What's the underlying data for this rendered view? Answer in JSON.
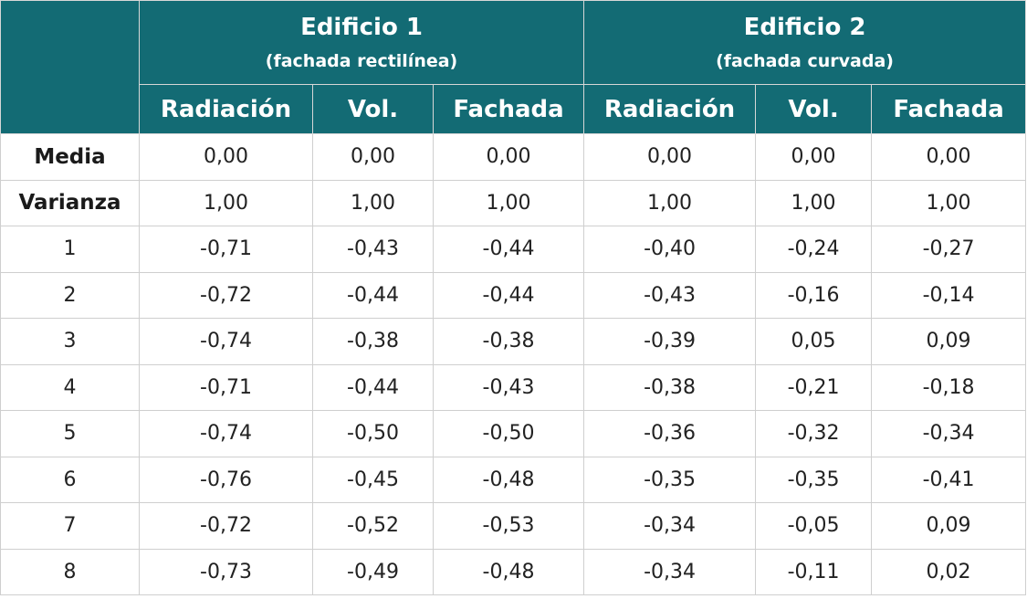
{
  "table": {
    "groups": [
      {
        "title": "Edificio 1",
        "subtitle": "(fachada rectilínea)"
      },
      {
        "title": "Edificio 2",
        "subtitle": "(fachada curvada)"
      }
    ],
    "subheaders": [
      "Radiación",
      "Vol.",
      "Fachada",
      "Radiación",
      "Vol.",
      "Fachada"
    ],
    "rows": [
      {
        "label": "Media",
        "values": [
          "0,00",
          "0,00",
          "0,00",
          "0,00",
          "0,00",
          "0,00"
        ]
      },
      {
        "label": "Varianza",
        "values": [
          "1,00",
          "1,00",
          "1,00",
          "1,00",
          "1,00",
          "1,00"
        ]
      },
      {
        "label": "1",
        "values": [
          "-0,71",
          "-0,43",
          "-0,44",
          "-0,40",
          "-0,24",
          "-0,27"
        ]
      },
      {
        "label": "2",
        "values": [
          "-0,72",
          "-0,44",
          "-0,44",
          "-0,43",
          "-0,16",
          "-0,14"
        ]
      },
      {
        "label": "3",
        "values": [
          "-0,74",
          "-0,38",
          "-0,38",
          "-0,39",
          "0,05",
          "0,09"
        ]
      },
      {
        "label": "4",
        "values": [
          "-0,71",
          "-0,44",
          "-0,43",
          "-0,38",
          "-0,21",
          "-0,18"
        ]
      },
      {
        "label": "5",
        "values": [
          "-0,74",
          "-0,50",
          "-0,50",
          "-0,36",
          "-0,32",
          "-0,34"
        ]
      },
      {
        "label": "6",
        "values": [
          "-0,76",
          "-0,45",
          "-0,48",
          "-0,35",
          "-0,35",
          "-0,41"
        ]
      },
      {
        "label": "7",
        "values": [
          "-0,72",
          "-0,52",
          "-0,53",
          "-0,34",
          "-0,05",
          "0,09"
        ]
      },
      {
        "label": "8",
        "values": [
          "-0,73",
          "-0,49",
          "-0,48",
          "-0,34",
          "-0,11",
          "0,02"
        ]
      }
    ]
  },
  "colors": {
    "header_bg": "#136b74",
    "header_text": "#ffffff",
    "grid": "#cfcfcf"
  }
}
